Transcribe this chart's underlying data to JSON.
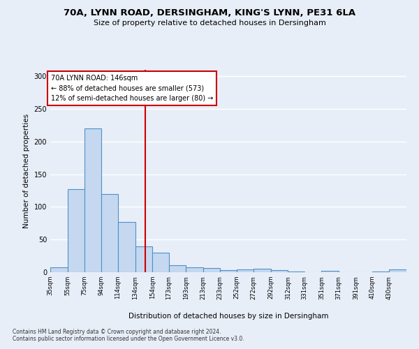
{
  "title_line1": "70A, LYNN ROAD, DERSINGHAM, KING'S LYNN, PE31 6LA",
  "title_line2": "Size of property relative to detached houses in Dersingham",
  "xlabel": "Distribution of detached houses by size in Dersingham",
  "ylabel": "Number of detached properties",
  "annotation_line1": "70A LYNN ROAD: 146sqm",
  "annotation_line2": "← 88% of detached houses are smaller (573)",
  "annotation_line3": "12% of semi-detached houses are larger (80) →",
  "categories": [
    "35sqm",
    "55sqm",
    "75sqm",
    "94sqm",
    "114sqm",
    "134sqm",
    "154sqm",
    "173sqm",
    "193sqm",
    "213sqm",
    "233sqm",
    "252sqm",
    "272sqm",
    "292sqm",
    "312sqm",
    "331sqm",
    "351sqm",
    "371sqm",
    "391sqm",
    "410sqm",
    "430sqm"
  ],
  "bar_edges": [
    35,
    55,
    75,
    94,
    114,
    134,
    154,
    173,
    193,
    213,
    233,
    252,
    272,
    292,
    312,
    331,
    351,
    371,
    391,
    410,
    430,
    450
  ],
  "bar_heights": [
    8,
    127,
    220,
    120,
    77,
    40,
    30,
    11,
    8,
    6,
    3,
    4,
    5,
    3,
    1,
    0,
    2,
    0,
    0,
    1,
    4
  ],
  "bar_color": "#c5d8f0",
  "bar_edge_color": "#4f90c8",
  "vline_color": "#cc0000",
  "vline_x": 146,
  "ylim": [
    0,
    310
  ],
  "yticks": [
    0,
    50,
    100,
    150,
    200,
    250,
    300
  ],
  "bg_color": "#e8eef8",
  "grid_color": "#ffffff",
  "footnote1": "Contains HM Land Registry data © Crown copyright and database right 2024.",
  "footnote2": "Contains public sector information licensed under the Open Government Licence v3.0."
}
